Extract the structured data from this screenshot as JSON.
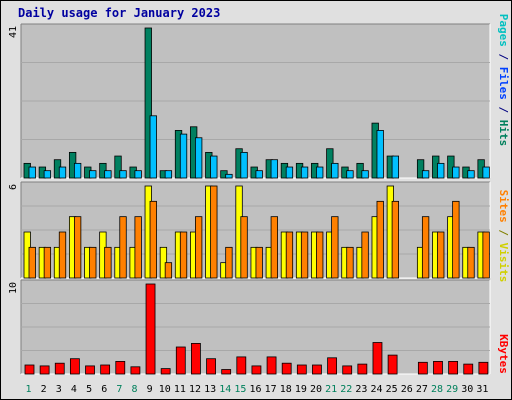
{
  "title": "Daily usage for January 2023",
  "colors": {
    "pages": "#008060",
    "files": "#00c0ff",
    "hits": "#00805c",
    "visits": "#ffff00",
    "sites": "#ff8000",
    "kbytes": "#ff0000",
    "weekday_tick": "#000000",
    "weekend_tick": "#00805c",
    "panel_bg": "#c0c0c0",
    "frame_bg": "#e0e0e0"
  },
  "chart_data": [
    {
      "type": "bar",
      "name": "hits-files-pages",
      "ymax_label": "41",
      "ylim": [
        0,
        41
      ],
      "legend": {
        "pages": "Pages",
        "files": "Files",
        "hits": "Hits",
        "sep": " / "
      },
      "categories": [
        "1",
        "2",
        "3",
        "4",
        "5",
        "6",
        "7",
        "8",
        "9",
        "10",
        "11",
        "12",
        "13",
        "14",
        "15",
        "16",
        "17",
        "18",
        "19",
        "20",
        "21",
        "22",
        "23",
        "24",
        "25",
        "26",
        "27",
        "28",
        "29",
        "30",
        "31"
      ],
      "series": [
        {
          "name": "Hits",
          "values": [
            4,
            3,
            5,
            7,
            3,
            4,
            6,
            3,
            41,
            2,
            13,
            14,
            7,
            2,
            8,
            3,
            5,
            4,
            4,
            4,
            8,
            3,
            4,
            15,
            6,
            0,
            5,
            6,
            6,
            3,
            5
          ]
        },
        {
          "name": "Files",
          "values": [
            3,
            2,
            3,
            4,
            2,
            2,
            2,
            2,
            17,
            2,
            12,
            11,
            6,
            1,
            7,
            2,
            5,
            3,
            3,
            3,
            4,
            2,
            2,
            13,
            6,
            0,
            2,
            4,
            3,
            2,
            3
          ]
        }
      ]
    },
    {
      "type": "bar",
      "name": "visits-sites",
      "ymax_label": "6",
      "ylim": [
        0,
        6
      ],
      "legend": {
        "sites": "Sites",
        "visits": "Visits",
        "sep": " / "
      },
      "categories": [
        "1",
        "2",
        "3",
        "4",
        "5",
        "6",
        "7",
        "8",
        "9",
        "10",
        "11",
        "12",
        "13",
        "14",
        "15",
        "16",
        "17",
        "18",
        "19",
        "20",
        "21",
        "22",
        "23",
        "24",
        "25",
        "26",
        "27",
        "28",
        "29",
        "30",
        "31"
      ],
      "series": [
        {
          "name": "Visits",
          "values": [
            3,
            2,
            2,
            4,
            2,
            3,
            2,
            2,
            6,
            2,
            3,
            3,
            6,
            1,
            6,
            2,
            2,
            3,
            3,
            3,
            3,
            2,
            2,
            4,
            6,
            0,
            2,
            3,
            4,
            2,
            3
          ]
        },
        {
          "name": "Sites",
          "values": [
            2,
            2,
            3,
            4,
            2,
            2,
            4,
            4,
            5,
            1,
            3,
            4,
            6,
            2,
            4,
            2,
            4,
            3,
            3,
            3,
            4,
            2,
            3,
            5,
            5,
            0,
            4,
            3,
            5,
            2,
            3
          ]
        }
      ]
    },
    {
      "type": "bar",
      "name": "kbytes",
      "ymax_label": "10",
      "ylim": [
        0,
        10
      ],
      "legend": {
        "kbytes": "KBytes"
      },
      "categories": [
        "1",
        "2",
        "3",
        "4",
        "5",
        "6",
        "7",
        "8",
        "9",
        "10",
        "11",
        "12",
        "13",
        "14",
        "15",
        "16",
        "17",
        "18",
        "19",
        "20",
        "21",
        "22",
        "23",
        "24",
        "25",
        "26",
        "27",
        "28",
        "29",
        "30",
        "31"
      ],
      "series": [
        {
          "name": "KBytes",
          "values": [
            1.0,
            0.9,
            1.2,
            1.7,
            0.9,
            1.0,
            1.4,
            0.8,
            10,
            0.6,
            3.0,
            3.4,
            1.7,
            0.5,
            1.9,
            0.9,
            1.9,
            1.2,
            1.0,
            1.0,
            1.8,
            0.9,
            1.1,
            3.5,
            2.1,
            0,
            1.3,
            1.4,
            1.4,
            1.1,
            1.3
          ]
        }
      ]
    }
  ],
  "weekend_days": [
    "1",
    "7",
    "8",
    "14",
    "15",
    "21",
    "22",
    "28",
    "29"
  ]
}
